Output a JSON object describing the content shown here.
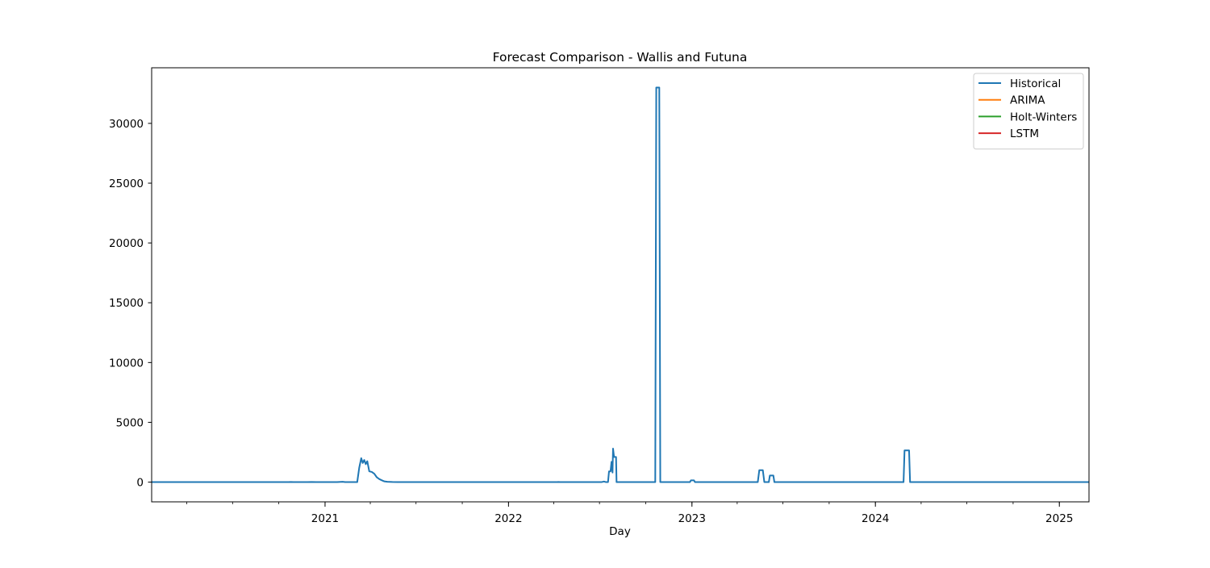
{
  "chart_data": {
    "type": "line",
    "title": "Forecast Comparison - Wallis and Futuna",
    "xlabel": "Day",
    "ylabel": "",
    "xlim": [
      "2020-01-22",
      "2025-03-01"
    ],
    "ylim": [
      -1650,
      34650
    ],
    "y_ticks": [
      0,
      5000,
      10000,
      15000,
      20000,
      25000,
      30000
    ],
    "x_ticks": [
      "2021-01-01",
      "2022-01-01",
      "2023-01-01",
      "2024-01-01",
      "2025-01-01"
    ],
    "x_tick_labels": [
      "2021",
      "2022",
      "2023",
      "2024",
      "2025"
    ],
    "grid": false,
    "legend_position": "top-right",
    "series": [
      {
        "name": "Historical",
        "color": "#1f77b4",
        "points": [
          [
            "2020-01-22",
            0
          ],
          [
            "2020-10-20",
            0
          ],
          [
            "2020-10-25",
            10
          ],
          [
            "2020-10-30",
            0
          ],
          [
            "2020-11-25",
            0
          ],
          [
            "2020-12-05",
            10
          ],
          [
            "2020-12-15",
            0
          ],
          [
            "2021-01-25",
            0
          ],
          [
            "2021-02-05",
            30
          ],
          [
            "2021-02-10",
            0
          ],
          [
            "2021-03-06",
            0
          ],
          [
            "2021-03-10",
            1200
          ],
          [
            "2021-03-14",
            2000
          ],
          [
            "2021-03-17",
            1600
          ],
          [
            "2021-03-20",
            1850
          ],
          [
            "2021-03-23",
            1500
          ],
          [
            "2021-03-26",
            1750
          ],
          [
            "2021-03-30",
            900
          ],
          [
            "2021-04-04",
            850
          ],
          [
            "2021-04-09",
            700
          ],
          [
            "2021-04-14",
            400
          ],
          [
            "2021-04-19",
            250
          ],
          [
            "2021-04-24",
            150
          ],
          [
            "2021-04-29",
            60
          ],
          [
            "2021-05-05",
            30
          ],
          [
            "2021-05-15",
            10
          ],
          [
            "2021-05-25",
            0
          ],
          [
            "2022-04-08",
            0
          ],
          [
            "2022-04-10",
            10
          ],
          [
            "2022-04-14",
            0
          ],
          [
            "2022-07-05",
            0
          ],
          [
            "2022-07-10",
            50
          ],
          [
            "2022-07-14",
            0
          ],
          [
            "2022-07-18",
            0
          ],
          [
            "2022-07-20",
            900
          ],
          [
            "2022-07-23",
            900
          ],
          [
            "2022-07-25",
            1700
          ],
          [
            "2022-07-27",
            800
          ],
          [
            "2022-07-28",
            2800
          ],
          [
            "2022-07-30",
            2100
          ],
          [
            "2022-08-03",
            2100
          ],
          [
            "2022-08-04",
            0
          ],
          [
            "2022-10-20",
            0
          ],
          [
            "2022-10-22",
            33000
          ],
          [
            "2022-10-28",
            33000
          ],
          [
            "2022-10-30",
            0
          ],
          [
            "2022-12-28",
            0
          ],
          [
            "2022-12-30",
            150
          ],
          [
            "2023-01-05",
            150
          ],
          [
            "2023-01-07",
            0
          ],
          [
            "2023-05-12",
            0
          ],
          [
            "2023-05-15",
            1000
          ],
          [
            "2023-05-22",
            1000
          ],
          [
            "2023-05-25",
            0
          ],
          [
            "2023-06-03",
            0
          ],
          [
            "2023-06-05",
            550
          ],
          [
            "2023-06-12",
            550
          ],
          [
            "2023-06-14",
            0
          ],
          [
            "2024-02-26",
            0
          ],
          [
            "2024-02-28",
            2650
          ],
          [
            "2024-03-08",
            2650
          ],
          [
            "2024-03-10",
            0
          ],
          [
            "2025-03-01",
            0
          ]
        ]
      },
      {
        "name": "ARIMA",
        "color": "#ff7f0e",
        "points": []
      },
      {
        "name": "Holt-Winters",
        "color": "#2ca02c",
        "points": []
      },
      {
        "name": "LSTM",
        "color": "#d62728",
        "points": []
      }
    ]
  }
}
